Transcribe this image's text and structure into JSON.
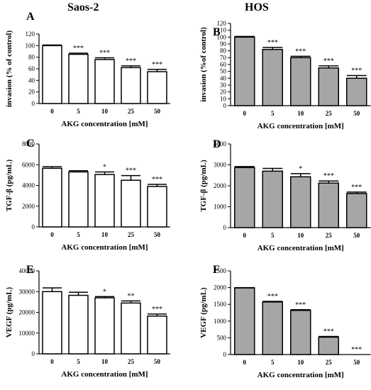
{
  "column_titles": [
    "Saos-2",
    "HOS"
  ],
  "colors": {
    "white_bar": "#ffffff",
    "gray_bar": "#a6a6a6",
    "stroke": "#000000"
  },
  "chart_data": [
    {
      "type": "bar",
      "panel": "A",
      "fill": "white",
      "categories": [
        "0",
        "5",
        "10",
        "25",
        "50"
      ],
      "values": [
        100,
        85,
        76,
        62,
        55
      ],
      "errors": [
        1,
        2,
        3,
        3,
        4
      ],
      "annotations": [
        "",
        "***",
        "***",
        "***",
        "***"
      ],
      "xlabel": "AKG concentration [mM]",
      "ylabel": "invasion (% of control)",
      "ylim": [
        0,
        120
      ],
      "yticks": [
        0,
        20,
        40,
        60,
        80,
        100,
        120
      ]
    },
    {
      "type": "bar",
      "panel": "B",
      "fill": "gray",
      "categories": [
        "0",
        "5",
        "10",
        "25",
        "50"
      ],
      "values": [
        100,
        82,
        70,
        55,
        40
      ],
      "errors": [
        1,
        3,
        2,
        3,
        4
      ],
      "annotations": [
        "",
        "***",
        "***",
        "***",
        "***"
      ],
      "xlabel": "AKG concentration [mM]",
      "ylabel": "invasion (%of control)",
      "ylim": [
        0,
        120
      ],
      "yticks": [
        0,
        10,
        20,
        30,
        40,
        50,
        60,
        70,
        80,
        90,
        100,
        110,
        120
      ]
    },
    {
      "type": "bar",
      "panel": "C",
      "fill": "white",
      "categories": [
        "0",
        "5",
        "10",
        "25",
        "50"
      ],
      "values": [
        5650,
        5300,
        5050,
        4500,
        3900
      ],
      "errors": [
        150,
        120,
        250,
        450,
        200
      ],
      "annotations": [
        "",
        "",
        "*",
        "***",
        "***"
      ],
      "xlabel": "AKG concentration [mM]",
      "ylabel": "TGF-β (pg/mL)",
      "ylim": [
        0,
        8000
      ],
      "yticks": [
        0,
        2000,
        4000,
        6000,
        8000
      ]
    },
    {
      "type": "bar",
      "panel": "D",
      "fill": "gray",
      "categories": [
        "0",
        "5",
        "10",
        "25",
        "50"
      ],
      "values": [
        2870,
        2700,
        2430,
        2130,
        1630
      ],
      "errors": [
        50,
        130,
        150,
        100,
        70
      ],
      "annotations": [
        "",
        "",
        "*",
        "***",
        "***"
      ],
      "xlabel": "AKG concentration [mM]",
      "ylabel": "TGF-β (pg/mL)",
      "ylim": [
        0,
        4000
      ],
      "yticks": [
        0,
        1000,
        2000,
        3000,
        4000
      ]
    },
    {
      "type": "bar",
      "panel": "E",
      "fill": "white",
      "categories": [
        "0",
        "5",
        "10",
        "25",
        "50"
      ],
      "values": [
        30000,
        28200,
        27000,
        24500,
        18200
      ],
      "errors": [
        1800,
        1500,
        600,
        1000,
        1000
      ],
      "annotations": [
        "",
        "",
        "*",
        "**",
        "***"
      ],
      "xlabel": "AKG concentration [mM]",
      "ylabel": "VEGF (pg/mL)",
      "ylim": [
        0,
        40000
      ],
      "yticks": [
        0,
        10000,
        20000,
        30000,
        40000
      ]
    },
    {
      "type": "bar",
      "panel": "F",
      "fill": "gray",
      "categories": [
        "0",
        "5",
        "10",
        "25",
        "50"
      ],
      "values": [
        1990,
        1570,
        1320,
        520,
        0
      ],
      "errors": [
        10,
        20,
        20,
        20,
        0
      ],
      "annotations": [
        "",
        "***",
        "***",
        "***",
        "***"
      ],
      "xlabel": "AKG concentration [mM]",
      "ylabel": "VEGF (pg/mL)",
      "ylim": [
        0,
        2500
      ],
      "yticks": [
        0,
        500,
        1000,
        1500,
        2000,
        2500
      ]
    }
  ]
}
